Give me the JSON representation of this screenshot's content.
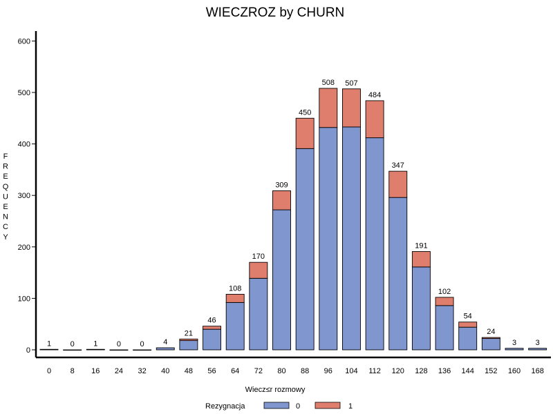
{
  "chart_data": {
    "type": "bar",
    "stacked": true,
    "title": "WIECZROZ by CHURN",
    "xlabel": "Wiecz≤r rozmowy",
    "ylabel": "FREQUENCY",
    "ylim": [
      0,
      600
    ],
    "yticks": [
      0,
      100,
      200,
      300,
      400,
      500,
      600
    ],
    "categories": [
      "0",
      "8",
      "16",
      "24",
      "32",
      "40",
      "48",
      "56",
      "64",
      "72",
      "80",
      "88",
      "96",
      "104",
      "112",
      "120",
      "128",
      "136",
      "144",
      "152",
      "160",
      "168"
    ],
    "totals": [
      1,
      0,
      1,
      0,
      0,
      4,
      21,
      46,
      108,
      170,
      309,
      450,
      508,
      507,
      484,
      347,
      191,
      102,
      54,
      24,
      3,
      3
    ],
    "series": [
      {
        "name": "0",
        "color": "#7f96cf",
        "values": [
          1,
          0,
          1,
          0,
          0,
          4,
          18,
          40,
          92,
          139,
          272,
          391,
          432,
          433,
          412,
          296,
          161,
          86,
          44,
          22,
          3,
          3
        ]
      },
      {
        "name": "1",
        "color": "#e07e6e",
        "values": [
          0,
          0,
          0,
          0,
          0,
          0,
          3,
          6,
          16,
          31,
          37,
          59,
          76,
          74,
          72,
          51,
          30,
          16,
          10,
          2,
          0,
          0
        ]
      }
    ],
    "legend": {
      "title": "Rezygnacja",
      "position": "bottom"
    },
    "grid": false
  }
}
